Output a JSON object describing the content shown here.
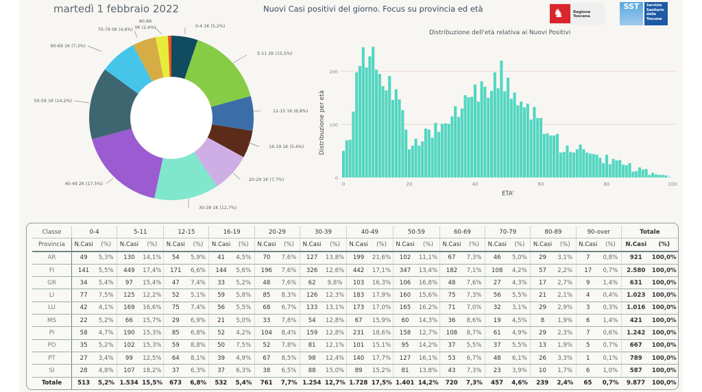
{
  "header": {
    "date": "martedì 1 febbraio 2022",
    "subtitle": "Nuovi Casi positivi del giorno. Focus su provincia ed età",
    "logo_regione": "Regione Toscana",
    "logo_sst_short": "SST",
    "logo_sst_lines": [
      "Servizio",
      "Sanitario",
      "della",
      "Toscana"
    ]
  },
  "colors": {
    "hist_bar": "#52d6c1",
    "gridline": "#e6c9c4"
  },
  "chart_data": [
    {
      "type": "pie",
      "subtype": "donut",
      "title": "",
      "slices": [
        {
          "label": "0-4",
          "short": "1K",
          "pct": "5,2%",
          "value": 513,
          "color": "#114b5f"
        },
        {
          "label": "5-11",
          "short": "2K",
          "pct": "15,5%",
          "value": 1534,
          "color": "#86cc44"
        },
        {
          "label": "12-15",
          "short": "1K",
          "pct": "6,8%",
          "value": 673,
          "color": "#3b6ea8"
        },
        {
          "label": "16-19",
          "short": "1K",
          "pct": "5,4%",
          "value": 532,
          "color": "#5c2b1a"
        },
        {
          "label": "20-29",
          "short": "1K",
          "pct": "7,7%",
          "value": 761,
          "color": "#cfaee6"
        },
        {
          "label": "30-39",
          "short": "1K",
          "pct": "12,7%",
          "value": 1254,
          "color": "#80e6cc"
        },
        {
          "label": "40-49",
          "short": "2K",
          "pct": "17,5%",
          "value": 1728,
          "color": "#9b5bd1"
        },
        {
          "label": "50-59",
          "short": "1K",
          "pct": "14,2%",
          "value": 1401,
          "color": "#3e6670"
        },
        {
          "label": "60-69",
          "short": "1K",
          "pct": "7,3%",
          "value": 720,
          "color": "#45c5ea"
        },
        {
          "label": "70-79",
          "short": "0K",
          "pct": "4,6%",
          "value": 457,
          "color": "#d6ad45"
        },
        {
          "label": "80-89",
          "short": "0K",
          "pct": "2,4%",
          "value": 239,
          "color": "#e7ec3a"
        },
        {
          "label": "90-over",
          "short": "0K",
          "pct": "0,7%",
          "value": 65,
          "color": "#e8501e"
        }
      ],
      "label_texts": [
        "0-4 1K (5,2%)",
        "5-11 2K (15,5%)",
        "12-15 1K (6,8%)",
        "16-19 1K (5,4%)",
        "20-29 1K (7,7%)",
        "30-39 1K (12,7%)",
        "40-49 2K (17,5%)",
        "50-59 1K (14,2%)",
        "60-69 1K (7,3%)",
        "70-79 0K (4,6%)",
        "80-89",
        "0K (2,4%)"
      ]
    },
    {
      "type": "bar",
      "title": "Distribuzione dell'età relativa ai Nuovi Positivi",
      "xlabel": "ETA'",
      "ylabel": "Distribuzione per età",
      "xlim": [
        0,
        100
      ],
      "ylim": [
        0,
        250
      ],
      "xticks": [
        "0",
        "20",
        "40",
        "60",
        "80",
        "100"
      ],
      "yticks": [
        "0",
        "100",
        "200"
      ],
      "grid": true,
      "x": [
        0,
        1,
        2,
        3,
        4,
        5,
        6,
        7,
        8,
        9,
        10,
        11,
        12,
        13,
        14,
        15,
        16,
        17,
        18,
        19,
        20,
        21,
        22,
        23,
        24,
        25,
        26,
        27,
        28,
        29,
        30,
        31,
        32,
        33,
        34,
        35,
        36,
        37,
        38,
        39,
        40,
        41,
        42,
        43,
        44,
        45,
        46,
        47,
        48,
        49,
        50,
        51,
        52,
        53,
        54,
        55,
        56,
        57,
        58,
        59,
        60,
        61,
        62,
        63,
        64,
        65,
        66,
        67,
        68,
        69,
        70,
        71,
        72,
        73,
        74,
        75,
        76,
        77,
        78,
        79,
        80,
        81,
        82,
        83,
        84,
        85,
        86,
        87,
        88,
        89,
        90,
        91,
        92,
        93,
        94,
        95,
        96,
        97,
        98,
        99
      ],
      "values": [
        50,
        70,
        71,
        124,
        198,
        210,
        245,
        207,
        228,
        246,
        203,
        195,
        172,
        164,
        191,
        146,
        166,
        147,
        127,
        90,
        53,
        60,
        73,
        60,
        68,
        92,
        90,
        75,
        103,
        86,
        101,
        102,
        101,
        115,
        134,
        114,
        130,
        155,
        151,
        152,
        175,
        143,
        181,
        171,
        150,
        163,
        198,
        168,
        220,
        162,
        188,
        148,
        160,
        136,
        143,
        132,
        139,
        109,
        133,
        112,
        112,
        82,
        83,
        79,
        79,
        82,
        47,
        48,
        60,
        48,
        47,
        53,
        62,
        53,
        47,
        45,
        44,
        43,
        37,
        27,
        43,
        25,
        35,
        32,
        33,
        24,
        23,
        27,
        11,
        12,
        19,
        15,
        16,
        5,
        9,
        6,
        5,
        5,
        4,
        1
      ]
    }
  ],
  "table": {
    "header_classe": "Classe",
    "header_provincia": "Provincia",
    "col_n": "N.Casi",
    "col_p": "(%)",
    "groups": [
      "0-4",
      "5-11",
      "12-15",
      "16-19",
      "20-29",
      "30-39",
      "40-49",
      "50-59",
      "60-69",
      "70-79",
      "80-89",
      "90-over",
      "Totale"
    ],
    "rows": [
      {
        "prov": "AR",
        "cells": [
          [
            "49",
            "5,3%"
          ],
          [
            "130",
            "14,1%"
          ],
          [
            "54",
            "5,9%"
          ],
          [
            "41",
            "4,5%"
          ],
          [
            "70",
            "7,6%"
          ],
          [
            "127",
            "13,8%"
          ],
          [
            "199",
            "21,6%"
          ],
          [
            "102",
            "11,1%"
          ],
          [
            "67",
            "7,3%"
          ],
          [
            "46",
            "5,0%"
          ],
          [
            "29",
            "3,1%"
          ],
          [
            "7",
            "0,8%"
          ],
          [
            "921",
            "100,0%"
          ]
        ]
      },
      {
        "prov": "FI",
        "cells": [
          [
            "141",
            "5,5%"
          ],
          [
            "449",
            "17,4%"
          ],
          [
            "171",
            "6,6%"
          ],
          [
            "144",
            "5,6%"
          ],
          [
            "196",
            "7,6%"
          ],
          [
            "326",
            "12,6%"
          ],
          [
            "442",
            "17,1%"
          ],
          [
            "347",
            "13,4%"
          ],
          [
            "182",
            "7,1%"
          ],
          [
            "108",
            "4,2%"
          ],
          [
            "57",
            "2,2%"
          ],
          [
            "17",
            "0,7%"
          ],
          [
            "2.580",
            "100,0%"
          ]
        ]
      },
      {
        "prov": "GR",
        "cells": [
          [
            "34",
            "5,4%"
          ],
          [
            "97",
            "15,4%"
          ],
          [
            "47",
            "7,4%"
          ],
          [
            "33",
            "5,2%"
          ],
          [
            "48",
            "7,6%"
          ],
          [
            "62",
            "9,8%"
          ],
          [
            "103",
            "16,3%"
          ],
          [
            "106",
            "16,8%"
          ],
          [
            "48",
            "7,6%"
          ],
          [
            "27",
            "4,3%"
          ],
          [
            "17",
            "2,7%"
          ],
          [
            "9",
            "1,4%"
          ],
          [
            "631",
            "100,0%"
          ]
        ]
      },
      {
        "prov": "LI",
        "cells": [
          [
            "77",
            "7,5%"
          ],
          [
            "125",
            "12,2%"
          ],
          [
            "52",
            "5,1%"
          ],
          [
            "59",
            "5,8%"
          ],
          [
            "85",
            "8,3%"
          ],
          [
            "126",
            "12,3%"
          ],
          [
            "183",
            "17,9%"
          ],
          [
            "160",
            "15,6%"
          ],
          [
            "75",
            "7,3%"
          ],
          [
            "56",
            "5,5%"
          ],
          [
            "21",
            "2,1%"
          ],
          [
            "4",
            "0,4%"
          ],
          [
            "1.023",
            "100,0%"
          ]
        ]
      },
      {
        "prov": "LU",
        "cells": [
          [
            "42",
            "4,1%"
          ],
          [
            "169",
            "16,6%"
          ],
          [
            "75",
            "7,4%"
          ],
          [
            "56",
            "5,5%"
          ],
          [
            "68",
            "6,7%"
          ],
          [
            "133",
            "13,1%"
          ],
          [
            "173",
            "17,0%"
          ],
          [
            "165",
            "16,2%"
          ],
          [
            "71",
            "7,0%"
          ],
          [
            "32",
            "3,1%"
          ],
          [
            "29",
            "2,9%"
          ],
          [
            "3",
            "0,3%"
          ],
          [
            "1.016",
            "100,0%"
          ]
        ]
      },
      {
        "prov": "MS",
        "cells": [
          [
            "22",
            "5,2%"
          ],
          [
            "66",
            "15,7%"
          ],
          [
            "29",
            "6,9%"
          ],
          [
            "21",
            "5,0%"
          ],
          [
            "33",
            "7,8%"
          ],
          [
            "54",
            "12,8%"
          ],
          [
            "67",
            "15,9%"
          ],
          [
            "60",
            "14,3%"
          ],
          [
            "36",
            "8,6%"
          ],
          [
            "19",
            "4,5%"
          ],
          [
            "8",
            "1,9%"
          ],
          [
            "6",
            "1,4%"
          ],
          [
            "421",
            "100,0%"
          ]
        ]
      },
      {
        "prov": "PI",
        "cells": [
          [
            "58",
            "4,7%"
          ],
          [
            "190",
            "15,3%"
          ],
          [
            "85",
            "6,8%"
          ],
          [
            "52",
            "4,2%"
          ],
          [
            "104",
            "8,4%"
          ],
          [
            "159",
            "12,8%"
          ],
          [
            "231",
            "18,6%"
          ],
          [
            "158",
            "12,7%"
          ],
          [
            "108",
            "8,7%"
          ],
          [
            "61",
            "4,9%"
          ],
          [
            "29",
            "2,3%"
          ],
          [
            "7",
            "0,6%"
          ],
          [
            "1.242",
            "100,0%"
          ]
        ]
      },
      {
        "prov": "PO",
        "cells": [
          [
            "35",
            "5,2%"
          ],
          [
            "102",
            "15,3%"
          ],
          [
            "59",
            "8,8%"
          ],
          [
            "50",
            "7,5%"
          ],
          [
            "52",
            "7,8%"
          ],
          [
            "81",
            "12,1%"
          ],
          [
            "101",
            "15,1%"
          ],
          [
            "95",
            "14,2%"
          ],
          [
            "37",
            "5,5%"
          ],
          [
            "37",
            "5,5%"
          ],
          [
            "13",
            "1,9%"
          ],
          [
            "5",
            "0,7%"
          ],
          [
            "667",
            "100,0%"
          ]
        ]
      },
      {
        "prov": "PT",
        "cells": [
          [
            "27",
            "3,4%"
          ],
          [
            "99",
            "12,5%"
          ],
          [
            "64",
            "8,1%"
          ],
          [
            "39",
            "4,9%"
          ],
          [
            "67",
            "8,5%"
          ],
          [
            "98",
            "12,4%"
          ],
          [
            "140",
            "17,7%"
          ],
          [
            "127",
            "16,1%"
          ],
          [
            "53",
            "6,7%"
          ],
          [
            "48",
            "6,1%"
          ],
          [
            "26",
            "3,3%"
          ],
          [
            "1",
            "0,1%"
          ],
          [
            "789",
            "100,0%"
          ]
        ]
      },
      {
        "prov": "SI",
        "cells": [
          [
            "28",
            "4,8%"
          ],
          [
            "107",
            "18,2%"
          ],
          [
            "37",
            "6,3%"
          ],
          [
            "37",
            "6,3%"
          ],
          [
            "38",
            "6,5%"
          ],
          [
            "88",
            "15,0%"
          ],
          [
            "89",
            "15,2%"
          ],
          [
            "81",
            "13,8%"
          ],
          [
            "43",
            "7,3%"
          ],
          [
            "23",
            "3,9%"
          ],
          [
            "10",
            "1,7%"
          ],
          [
            "6",
            "1,0%"
          ],
          [
            "587",
            "100,0%"
          ]
        ]
      }
    ],
    "total": {
      "prov": "Totale",
      "cells": [
        [
          "513",
          "5,2%"
        ],
        [
          "1.534",
          "15,5%"
        ],
        [
          "673",
          "6,8%"
        ],
        [
          "532",
          "5,4%"
        ],
        [
          "761",
          "7,7%"
        ],
        [
          "1.254",
          "12,7%"
        ],
        [
          "1.728",
          "17,5%"
        ],
        [
          "1.401",
          "14,2%"
        ],
        [
          "720",
          "7,3%"
        ],
        [
          "457",
          "4,6%"
        ],
        [
          "239",
          "2,4%"
        ],
        [
          "65",
          "0,7%"
        ],
        [
          "9.877",
          "100,0%"
        ]
      ]
    }
  }
}
